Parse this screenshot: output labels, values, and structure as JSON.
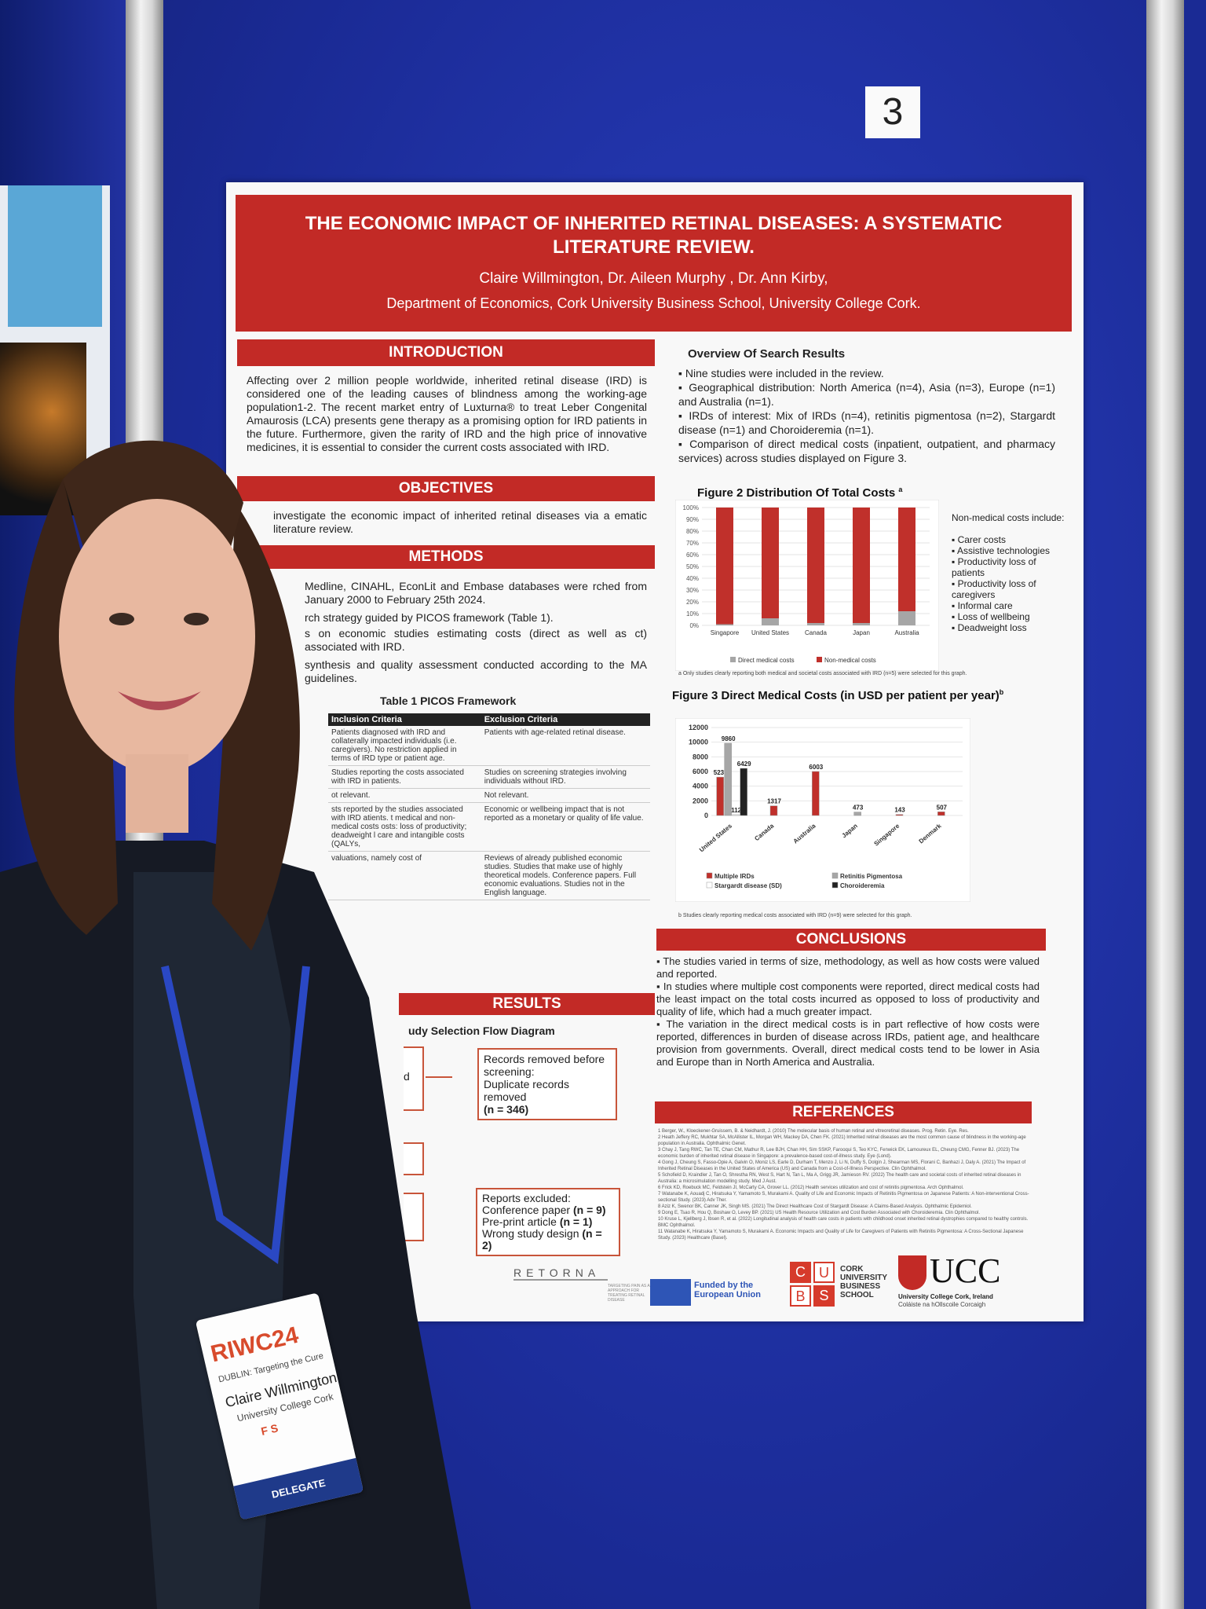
{
  "board_number": "3",
  "poster": {
    "title": "THE ECONOMIC IMPACT OF INHERITED RETINAL DISEASES: A SYSTEMATIC LITERATURE REVIEW.",
    "authors": "Claire Willmington, Dr. Aileen Murphy , Dr. Ann Kirby,",
    "department": "Department of Economics, Cork University Business School, University College Cork.",
    "introduction": {
      "heading": "INTRODUCTION",
      "text": "Affecting over 2 million people worldwide, inherited retinal disease (IRD) is considered one of the leading causes of blindness among the working-age population1-2. The recent market entry of Luxturna® to treat Leber Congenital Amaurosis (LCA) presents gene therapy as a promising option for IRD patients in the future. Furthermore, given the rarity of IRD and the high price of innovative medicines, it is essential to consider the current costs associated with IRD."
    },
    "objectives": {
      "heading": "OBJECTIVES",
      "text": "investigate the economic impact of inherited retinal diseases via a ematic literature review."
    },
    "methods": {
      "heading": "METHODS",
      "lines": [
        "Medline, CINAHL, EconLit and Embase databases were rched from January 2000 to February 25th 2024.",
        "rch strategy guided by PICOS framework (Table 1).",
        "s on economic studies estimating costs (direct as well as ct) associated with IRD.",
        "synthesis and quality assessment conducted according to the MA guidelines."
      ]
    },
    "table": {
      "title": "Table 1 PICOS Framework",
      "headers": [
        "Inclusion Criteria",
        "Exclusion Criteria"
      ],
      "rows": [
        [
          "Patients diagnosed with IRD and collaterally impacted individuals (i.e. caregivers). No restriction applied in terms of IRD type or patient age.",
          "Patients with age-related retinal disease."
        ],
        [
          "Studies reporting the costs associated with IRD in patients.",
          "Studies on screening strategies involving individuals without IRD."
        ],
        [
          "ot relevant.",
          "Not relevant."
        ],
        [
          "sts reported by the studies associated with IRD atients. t medical and non-medical costs osts: loss of productivity; deadweight l care and intangible costs (QALYs,",
          "Economic or wellbeing impact that is not reported as a monetary or quality of life value."
        ],
        [
          "valuations, namely cost of",
          "Reviews of already published economic studies. Studies that make use of highly theoretical models. Conference papers. Full economic evaluations. Studies not in the English language."
        ]
      ]
    },
    "results": {
      "heading": "RESULTS",
      "flow_title": "udy Selection Flow Diagram",
      "flow_left_label": "d",
      "removed": {
        "line1": "Records removed before screening:",
        "line2": "Duplicate records removed",
        "count": "(n = 346)"
      },
      "excluded": {
        "title": "Reports excluded:",
        "items": [
          {
            "label": "Conference paper",
            "n": "(n = 9)"
          },
          {
            "label": "Pre-print article",
            "n": "(n = 1)"
          },
          {
            "label": "Wrong study design",
            "n": "(n = 2)"
          }
        ]
      }
    },
    "overview": {
      "heading": "Overview Of Search Results",
      "bullets": [
        "Nine studies were included in the review.",
        "Geographical distribution: North America (n=4), Asia (n=3), Europe (n=1) and Australia (n=1).",
        "IRDs of interest: Mix of IRDs (n=4), retinitis pigmentosa (n=2), Stargardt disease (n=1) and Choroideremia (n=1).",
        "Comparison of direct medical costs (inpatient, outpatient, and pharmacy services) across studies displayed on Figure 3."
      ]
    },
    "figure2": {
      "title": "Figure 2 Distribution Of Total Costs",
      "title_sup": "a",
      "note": "a Only studies clearly reporting both medical and societal costs associated with IRD (n=5) were selected for this graph.",
      "nonmed_heading": "Non-medical costs include:",
      "nonmed_items": [
        "Carer costs",
        "Assistive technologies",
        "Productivity loss of patients",
        "Productivity loss of caregivers",
        "Informal care",
        "Loss of wellbeing",
        "Deadweight loss"
      ]
    },
    "figure3": {
      "title": "Figure 3 Direct Medical Costs (in USD per patient per year)",
      "title_sup": "b",
      "note": "b Studies clearly reporting medical costs associated with IRD (n=9) were selected for this graph."
    },
    "conclusions": {
      "heading": "CONCLUSIONS",
      "bullets": [
        "The studies varied in terms of size, methodology, as well as how costs were valued and reported.",
        "In studies where multiple cost components were reported, direct medical costs had the least impact on the total costs incurred as opposed to loss of productivity and quality of life, which had a much greater impact.",
        "The variation in the direct medical costs is in part reflective of how costs were reported, differences in burden of disease across IRDs, patient age, and healthcare provision from governments. Overall, direct medical costs tend to be lower in Asia and Europe than in North America and Australia."
      ]
    },
    "references": {
      "heading": "REFERENCES",
      "items": [
        "1 Berger, W., Kloeckener-Gruissem, B. & Neidhardt, J. (2010) The molecular basis of human retinal and vitreoretinal diseases. Prog. Retin. Eye. Res.",
        "2 Heath Jeffery RC, Mukhtar SA, McAllister IL, Morgan WH, Mackey DA, Chen FK. (2021) Inherited retinal diseases are the most common cause of blindness in the working-age population in Australia. Ophthalmic Genet.",
        "3 Chay J, Tang RWC, Tan TE, Chan CM, Mathur R, Lee BJH, Chan HH, Sim SSKP, Farooqui S, Teo KYC, Fenwick EK, Lamoureux EL, Cheung CMG, Fenner BJ. (2023) The economic burden of inherited retinal disease in Singapore: a prevalence-based cost-of-illness study. Eye (Lond).",
        "4 Gong J, Cheung S, Fasso-Opie A, Galvin O, Moniz LS, Earle D, Durham T, Menzo J, Li N, Duffy S, Dolgin J, Shearman MS, Florani C, Banhazi J, Daly A. (2021) The Impact of Inherited Retinal Diseases in the United States of America (US) and Canada from a Cost-of-Illness Perspective. Clin Ophthalmol.",
        "5 Schofield D, Kraindler J, Tan O, Shrestha RN, West S, Hart N, Tan L, Ma A, Grigg JR, Jamieson RV. (2022) The health care and societal costs of inherited retinal diseases in Australia: a microsimulation modelling study. Med J Aust.",
        "6 Frick KD, Roebuck MC, Feldstein JI, McCarty CA, Grover LL. (2012) Health services utilization and cost of retinitis pigmentosa. Arch Ophthalmol.",
        "7 Watanabe K, Aouadj C, Hiratsuka Y, Yamamoto S, Murakami A. Quality of Life and Economic Impacts of Retinitis Pigmentosa on Japanese Patients: A Non-interventional Cross-sectional Study. (2023) Adv Ther.",
        "8 Aziz K, Swenor BK, Canner JK, Singh MS. (2021) The Direct Healthcare Cost of Stargardt Disease: A Claims-Based Analysis. Ophthalmic Epidemiol.",
        "9 Dong E, Tsao R, Hou Q, Boshaw O, Levey BP. (2021) US Health Resource Utilization and Cost Burden Associated with Choroideremia. Clin Ophthalmol.",
        "10 Kruse L, Kjellberg J, Ibsen R, et al. (2022) Longitudinal analysis of health care costs in patients with childhood onset inherited retinal dystrophies compared to healthy controls. BMC Ophthalmol.",
        "11 Watanabe K, Hiratsuka Y, Yamamoto S, Murakami A. Economic Impacts and Quality of Life for Caregivers of Patients with Retinitis Pigmentosa: A Cross-Sectional Japanese Study. (2023) Healthcare (Basel)."
      ]
    },
    "logos": {
      "retorna": "RETORNA",
      "retorna_sub": "TARGETING PAIN AS AN APPROACH FOR TREATING RETINAL DISEASE",
      "eu": "Funded by the European Union",
      "cubs_letters": [
        "C",
        "U",
        "B",
        "S"
      ],
      "cubs_text": "CORK UNIVERSITY BUSINESS SCHOOL",
      "ucc": "UCC",
      "ucc_sub1": "University College Cork, Ireland",
      "ucc_sub2": "Coláiste na hOllscoile Corcaigh"
    }
  },
  "badge": {
    "event": "RIWC24",
    "tagline": "DUBLIN: Targeting the Cure",
    "name": "Claire Willmington",
    "org": "University College Cork",
    "initials": "F S",
    "role": "DELEGATE"
  },
  "chart_data": [
    {
      "type": "bar",
      "stacked": true,
      "title": "Figure 2 Distribution Of Total Costs",
      "categories": [
        "Singapore",
        "United States",
        "Canada",
        "Japan",
        "Australia"
      ],
      "category_sups": [
        "3",
        "4",
        "4",
        "7",
        "5"
      ],
      "series": [
        {
          "name": "Direct medical costs",
          "values": [
            1,
            6,
            2,
            2,
            12
          ],
          "color": "#a6a6a6"
        },
        {
          "name": "Non-medical costs",
          "values": [
            99,
            94,
            98,
            98,
            88
          ],
          "color": "#c0302b"
        }
      ],
      "y_ticks": [
        "0%",
        "10%",
        "20%",
        "30%",
        "40%",
        "50%",
        "60%",
        "70%",
        "80%",
        "90%",
        "100%"
      ],
      "ylim": [
        0,
        100
      ],
      "legend": "bottom"
    },
    {
      "type": "bar",
      "title": "Figure 3 Direct Medical Costs (in USD per patient per year)",
      "categories": [
        "United States",
        "Canada",
        "Australia",
        "Japan",
        "Singapore",
        "Denmark"
      ],
      "category_sups": [
        "4,6,8,9",
        "4",
        "5",
        "7",
        "3",
        "10"
      ],
      "series": [
        {
          "name": "Multiple IRDs",
          "color": "#c0302b",
          "values": [
            5237,
            1317,
            6003,
            null,
            143,
            507
          ]
        },
        {
          "name": "Retinitis Pigmentosa",
          "color": "#a6a6a6",
          "values": [
            9860,
            null,
            null,
            473,
            null,
            null
          ]
        },
        {
          "name": "Stargardt disease (SD)",
          "color": "#ffffff",
          "values": [
            112,
            null,
            null,
            null,
            null,
            null
          ]
        },
        {
          "name": "Choroideremia",
          "color": "#222222",
          "values": [
            6429,
            null,
            null,
            null,
            null,
            null
          ]
        }
      ],
      "y_ticks": [
        "0",
        "2000",
        "4000",
        "6000",
        "8000",
        "10000",
        "12000"
      ],
      "ylim": [
        0,
        12000
      ],
      "legend": "bottom"
    }
  ]
}
